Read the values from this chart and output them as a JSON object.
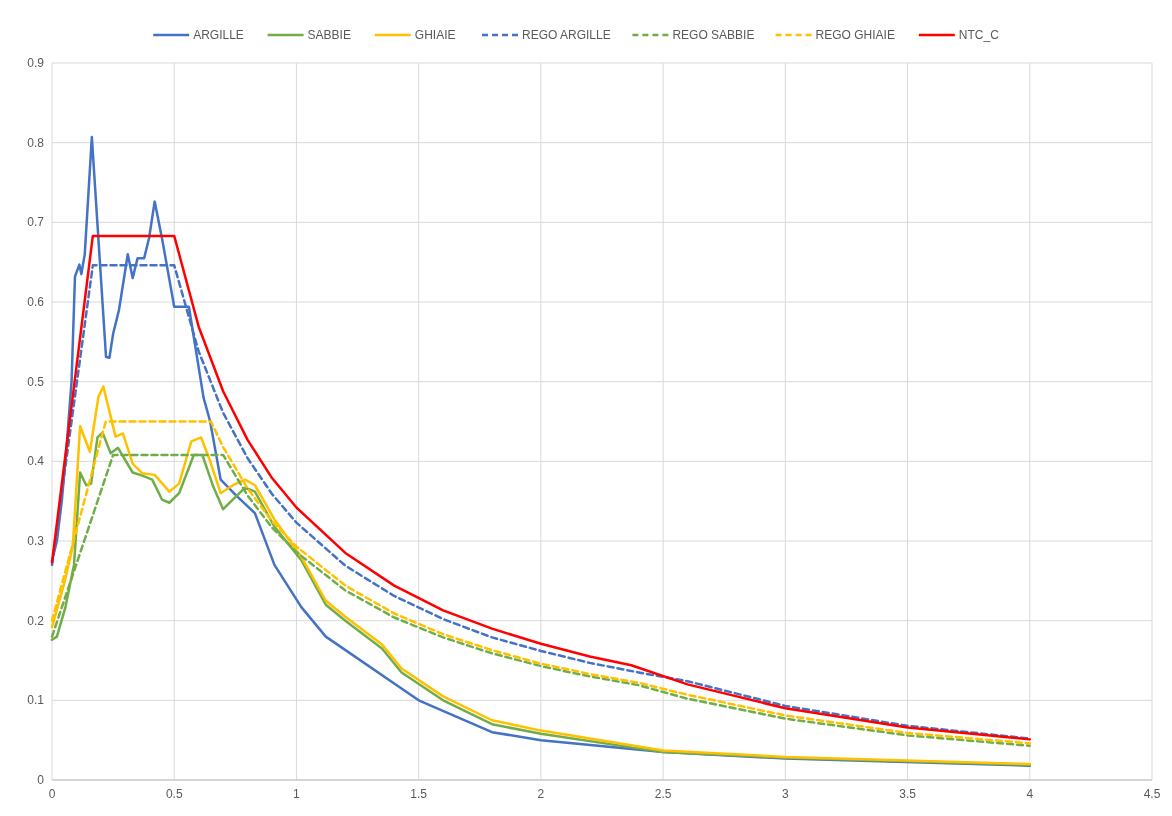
{
  "chart_data": {
    "type": "line",
    "xlim": [
      0,
      4.5
    ],
    "xticks": [
      0,
      0.5,
      1,
      1.5,
      2,
      2.5,
      3,
      3.5,
      4,
      4.5
    ],
    "ylim": [
      0,
      0.9
    ],
    "yticks": [
      0,
      0.1,
      0.2,
      0.3,
      0.4,
      0.5,
      0.6,
      0.7,
      0.8,
      0.9
    ],
    "grid": true,
    "legend": "top",
    "marker": "none",
    "series": [
      {
        "name": "ARGILLE",
        "color": "#4472c4",
        "line_style": "solid",
        "x": [
          0,
          0.02,
          0.04,
          0.06,
          0.08,
          0.094,
          0.112,
          0.12,
          0.134,
          0.163,
          0.221,
          0.235,
          0.25,
          0.274,
          0.31,
          0.33,
          0.35,
          0.377,
          0.397,
          0.42,
          0.45,
          0.5,
          0.56,
          0.62,
          0.647,
          0.69,
          0.757,
          0.83,
          0.91,
          1.02,
          1.12,
          1.5,
          1.8,
          2,
          2.5,
          3,
          4
        ],
        "values": [
          0.275,
          0.3,
          0.35,
          0.42,
          0.5,
          0.632,
          0.647,
          0.635,
          0.66,
          0.807,
          0.531,
          0.53,
          0.56,
          0.59,
          0.66,
          0.63,
          0.655,
          0.655,
          0.68,
          0.726,
          0.68,
          0.594,
          0.594,
          0.48,
          0.45,
          0.377,
          0.356,
          0.335,
          0.27,
          0.217,
          0.18,
          0.1,
          0.06,
          0.05,
          0.035,
          0.027,
          0.018
        ]
      },
      {
        "name": "SABBIE",
        "color": "#70ad47",
        "line_style": "solid",
        "x": [
          0,
          0.02,
          0.055,
          0.09,
          0.115,
          0.14,
          0.16,
          0.186,
          0.207,
          0.24,
          0.27,
          0.33,
          0.37,
          0.41,
          0.45,
          0.48,
          0.52,
          0.58,
          0.615,
          0.66,
          0.7,
          0.75,
          0.79,
          0.83,
          0.91,
          1.02,
          1.12,
          1.2,
          1.35,
          1.43,
          1.6,
          1.8,
          2,
          2.5,
          3,
          4
        ],
        "values": [
          0.176,
          0.18,
          0.217,
          0.27,
          0.386,
          0.37,
          0.372,
          0.43,
          0.436,
          0.41,
          0.417,
          0.386,
          0.382,
          0.377,
          0.352,
          0.348,
          0.36,
          0.408,
          0.408,
          0.368,
          0.34,
          0.355,
          0.367,
          0.362,
          0.318,
          0.276,
          0.22,
          0.2,
          0.165,
          0.135,
          0.1,
          0.07,
          0.058,
          0.035,
          0.028,
          0.019
        ]
      },
      {
        "name": "GHIAIE",
        "color": "#ffc000",
        "line_style": "solid",
        "x": [
          0,
          0.05,
          0.085,
          0.115,
          0.155,
          0.19,
          0.21,
          0.234,
          0.26,
          0.29,
          0.33,
          0.37,
          0.42,
          0.48,
          0.52,
          0.57,
          0.61,
          0.645,
          0.69,
          0.74,
          0.79,
          0.83,
          0.91,
          1.02,
          1.12,
          1.2,
          1.35,
          1.43,
          1.6,
          1.8,
          2,
          2.5,
          3,
          4
        ],
        "values": [
          0.192,
          0.247,
          0.293,
          0.444,
          0.412,
          0.481,
          0.494,
          0.464,
          0.431,
          0.435,
          0.397,
          0.385,
          0.383,
          0.362,
          0.372,
          0.425,
          0.43,
          0.402,
          0.36,
          0.37,
          0.377,
          0.37,
          0.327,
          0.28,
          0.225,
          0.205,
          0.17,
          0.14,
          0.105,
          0.075,
          0.062,
          0.037,
          0.029,
          0.02
        ]
      },
      {
        "name": "REGO ARGILLE",
        "color": "#4472c4",
        "line_style": "dashed",
        "x": [
          0,
          0.167,
          0.5,
          0.6,
          0.7,
          0.8,
          0.9,
          1,
          1.2,
          1.4,
          1.6,
          1.8,
          2,
          2.2,
          2.4,
          2.6,
          3,
          3.5,
          4
        ],
        "values": [
          0.27,
          0.646,
          0.646,
          0.538,
          0.461,
          0.404,
          0.359,
          0.323,
          0.269,
          0.231,
          0.202,
          0.179,
          0.162,
          0.147,
          0.135,
          0.124,
          0.093,
          0.068,
          0.052
        ]
      },
      {
        "name": "REGO SABBIE",
        "color": "#70ad47",
        "line_style": "dashed",
        "x": [
          0,
          0.25,
          0.7,
          0.8,
          0.9,
          1,
          1.2,
          1.4,
          1.6,
          1.8,
          2,
          2.2,
          2.4,
          2.6,
          3,
          3.5,
          4
        ],
        "values": [
          0.18,
          0.408,
          0.408,
          0.357,
          0.317,
          0.286,
          0.238,
          0.204,
          0.179,
          0.159,
          0.143,
          0.13,
          0.119,
          0.102,
          0.077,
          0.056,
          0.043
        ]
      },
      {
        "name": "REGO GHIAIE",
        "color": "#ffc000",
        "line_style": "dashed",
        "x": [
          0,
          0.22,
          0.65,
          0.7,
          0.8,
          0.9,
          1,
          1.2,
          1.4,
          1.6,
          1.8,
          2,
          2.2,
          2.4,
          2.6,
          3,
          3.5,
          4
        ],
        "values": [
          0.2,
          0.45,
          0.45,
          0.418,
          0.366,
          0.325,
          0.293,
          0.244,
          0.209,
          0.183,
          0.163,
          0.146,
          0.133,
          0.122,
          0.107,
          0.081,
          0.059,
          0.046
        ]
      },
      {
        "name": "NTC_C",
        "color": "#ff0000",
        "line_style": "solid",
        "x": [
          0,
          0.167,
          0.5,
          0.6,
          0.7,
          0.8,
          0.9,
          1,
          1.2,
          1.4,
          1.6,
          1.8,
          2,
          2.2,
          2.37,
          2.6,
          3,
          3.5,
          4
        ],
        "values": [
          0.273,
          0.683,
          0.683,
          0.569,
          0.488,
          0.427,
          0.379,
          0.342,
          0.285,
          0.244,
          0.213,
          0.19,
          0.171,
          0.155,
          0.144,
          0.12,
          0.09,
          0.066,
          0.051
        ]
      }
    ]
  }
}
